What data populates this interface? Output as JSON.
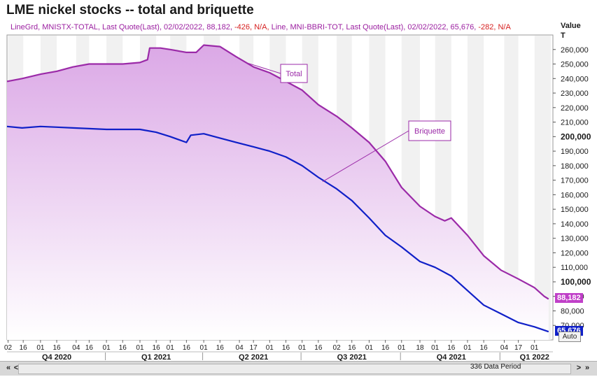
{
  "title": "LME nickel stocks -- total and briquette",
  "legend": {
    "total_prefix": "LineGrd, MNISTX-TOTAL, Last Quote(Last), 02/02/2022, 88,182,",
    "total_change": "-426, N/A,",
    "brq_prefix": " Line, MNI-BBRI-TOT, Last Quote(Last), 02/02/2022, 65,676,",
    "brq_change": "-282, N/A"
  },
  "axis_unit": {
    "line1": "Value",
    "line2": "T"
  },
  "last_total_label": "88,182",
  "last_brq_label": "65,676",
  "auto_label": "Auto",
  "period_label": "336 Data Period",
  "scroll": {
    "left": "«",
    "left2": "<",
    "right": ">",
    "right2": "»"
  },
  "annotations": {
    "total": "Total",
    "briquette": "Briquette"
  },
  "colors": {
    "total": "#9b2aa8",
    "briquette": "#1020c8",
    "fill_top": "#dba8e6",
    "accent": "#c040c8"
  },
  "chart_data": {
    "type": "area",
    "title": "LME nickel stocks -- total and briquette",
    "ylabel": "Value T",
    "ylim": [
      60000,
      270000
    ],
    "y_ticks": [
      70000,
      80000,
      90000,
      100000,
      110000,
      120000,
      130000,
      140000,
      150000,
      160000,
      170000,
      180000,
      190000,
      200000,
      210000,
      220000,
      230000,
      240000,
      250000,
      260000
    ],
    "y_tick_labels": [
      "70,000",
      "80,000",
      "90,000",
      "100,000",
      "110,000",
      "120,000",
      "130,000",
      "140,000",
      "150,000",
      "160,000",
      "170,000",
      "180,000",
      "190,000",
      "200,000",
      "210,000",
      "220,000",
      "230,000",
      "240,000",
      "250,000",
      "260,000"
    ],
    "y_bold": [
      "100,000",
      "200,000"
    ],
    "xlim": [
      "2020-10-01",
      "2022-02-18"
    ],
    "x_tick_labels": [
      {
        "date": "2020-10-02",
        "label": "02"
      },
      {
        "date": "2020-10-16",
        "label": "16"
      },
      {
        "date": "2020-11-01",
        "label": "01"
      },
      {
        "date": "2020-11-16",
        "label": "16"
      },
      {
        "date": "2020-12-04",
        "label": "04"
      },
      {
        "date": "2020-12-16",
        "label": "16"
      },
      {
        "date": "2021-01-01",
        "label": "01"
      },
      {
        "date": "2021-01-16",
        "label": "16"
      },
      {
        "date": "2021-02-01",
        "label": "01"
      },
      {
        "date": "2021-02-16",
        "label": "16"
      },
      {
        "date": "2021-03-01",
        "label": "01"
      },
      {
        "date": "2021-03-16",
        "label": "16"
      },
      {
        "date": "2021-04-01",
        "label": "01"
      },
      {
        "date": "2021-04-16",
        "label": "16"
      },
      {
        "date": "2021-05-04",
        "label": "04"
      },
      {
        "date": "2021-05-17",
        "label": "17"
      },
      {
        "date": "2021-06-01",
        "label": "01"
      },
      {
        "date": "2021-06-16",
        "label": "16"
      },
      {
        "date": "2021-07-01",
        "label": "01"
      },
      {
        "date": "2021-07-16",
        "label": "16"
      },
      {
        "date": "2021-08-02",
        "label": "02"
      },
      {
        "date": "2021-08-16",
        "label": "16"
      },
      {
        "date": "2021-09-01",
        "label": "01"
      },
      {
        "date": "2021-09-16",
        "label": "16"
      },
      {
        "date": "2021-10-01",
        "label": "01"
      },
      {
        "date": "2021-10-18",
        "label": "18"
      },
      {
        "date": "2021-11-01",
        "label": "01"
      },
      {
        "date": "2021-11-16",
        "label": "16"
      },
      {
        "date": "2021-12-01",
        "label": "01"
      },
      {
        "date": "2021-12-16",
        "label": "16"
      },
      {
        "date": "2022-01-04",
        "label": "04"
      },
      {
        "date": "2022-01-17",
        "label": "17"
      },
      {
        "date": "2022-02-01",
        "label": "01"
      },
      {
        "date": "2022-02-16",
        "label": "16"
      }
    ],
    "quarters": [
      {
        "date": "2020-11-16",
        "label": "Q4 2020"
      },
      {
        "date": "2021-02-16",
        "label": "Q1 2021"
      },
      {
        "date": "2021-05-17",
        "label": "Q2 2021"
      },
      {
        "date": "2021-08-16",
        "label": "Q3 2021"
      },
      {
        "date": "2021-11-16",
        "label": "Q4 2021"
      },
      {
        "date": "2022-02-01",
        "label": "Q1 2022"
      }
    ],
    "series": [
      {
        "name": "MNISTX-TOTAL",
        "points": [
          [
            "2020-10-01",
            238000
          ],
          [
            "2020-10-15",
            240000
          ],
          [
            "2020-11-01",
            243000
          ],
          [
            "2020-11-16",
            245000
          ],
          [
            "2020-12-01",
            248000
          ],
          [
            "2020-12-16",
            250000
          ],
          [
            "2021-01-01",
            250000
          ],
          [
            "2021-01-16",
            250000
          ],
          [
            "2021-02-01",
            251000
          ],
          [
            "2021-02-08",
            253000
          ],
          [
            "2021-02-10",
            261000
          ],
          [
            "2021-02-20",
            261000
          ],
          [
            "2021-03-01",
            260000
          ],
          [
            "2021-03-16",
            258000
          ],
          [
            "2021-03-25",
            258000
          ],
          [
            "2021-04-01",
            263000
          ],
          [
            "2021-04-16",
            262000
          ],
          [
            "2021-05-01",
            255000
          ],
          [
            "2021-05-17",
            248000
          ],
          [
            "2021-06-01",
            244000
          ],
          [
            "2021-06-16",
            238000
          ],
          [
            "2021-07-01",
            232000
          ],
          [
            "2021-07-16",
            222000
          ],
          [
            "2021-08-02",
            214000
          ],
          [
            "2021-08-16",
            206000
          ],
          [
            "2021-09-01",
            196000
          ],
          [
            "2021-09-16",
            183000
          ],
          [
            "2021-10-01",
            165000
          ],
          [
            "2021-10-18",
            152000
          ],
          [
            "2021-11-01",
            145000
          ],
          [
            "2021-11-10",
            142000
          ],
          [
            "2021-11-16",
            144000
          ],
          [
            "2021-12-01",
            132000
          ],
          [
            "2021-12-16",
            118000
          ],
          [
            "2022-01-01",
            108000
          ],
          [
            "2022-01-17",
            102000
          ],
          [
            "2022-02-01",
            96000
          ],
          [
            "2022-02-10",
            90000
          ],
          [
            "2022-02-14",
            88182
          ]
        ]
      },
      {
        "name": "MNI-BBRI-TOT",
        "points": [
          [
            "2020-10-01",
            207000
          ],
          [
            "2020-10-15",
            206000
          ],
          [
            "2020-11-01",
            207000
          ],
          [
            "2020-11-16",
            206500
          ],
          [
            "2020-12-01",
            206000
          ],
          [
            "2020-12-16",
            205500
          ],
          [
            "2021-01-01",
            205000
          ],
          [
            "2021-01-16",
            205000
          ],
          [
            "2021-02-01",
            205000
          ],
          [
            "2021-02-16",
            203000
          ],
          [
            "2021-03-01",
            200000
          ],
          [
            "2021-03-16",
            196000
          ],
          [
            "2021-03-20",
            201000
          ],
          [
            "2021-04-01",
            202000
          ],
          [
            "2021-04-16",
            199000
          ],
          [
            "2021-05-01",
            196000
          ],
          [
            "2021-05-17",
            193000
          ],
          [
            "2021-06-01",
            190000
          ],
          [
            "2021-06-16",
            186000
          ],
          [
            "2021-07-01",
            180000
          ],
          [
            "2021-07-16",
            172000
          ],
          [
            "2021-08-02",
            164000
          ],
          [
            "2021-08-16",
            156000
          ],
          [
            "2021-09-01",
            144000
          ],
          [
            "2021-09-16",
            132000
          ],
          [
            "2021-10-01",
            124000
          ],
          [
            "2021-10-18",
            114000
          ],
          [
            "2021-11-01",
            110000
          ],
          [
            "2021-11-16",
            104000
          ],
          [
            "2021-12-01",
            94000
          ],
          [
            "2021-12-16",
            84000
          ],
          [
            "2022-01-01",
            78000
          ],
          [
            "2022-01-17",
            72000
          ],
          [
            "2022-02-01",
            69000
          ],
          [
            "2022-02-14",
            65676
          ]
        ]
      }
    ]
  }
}
